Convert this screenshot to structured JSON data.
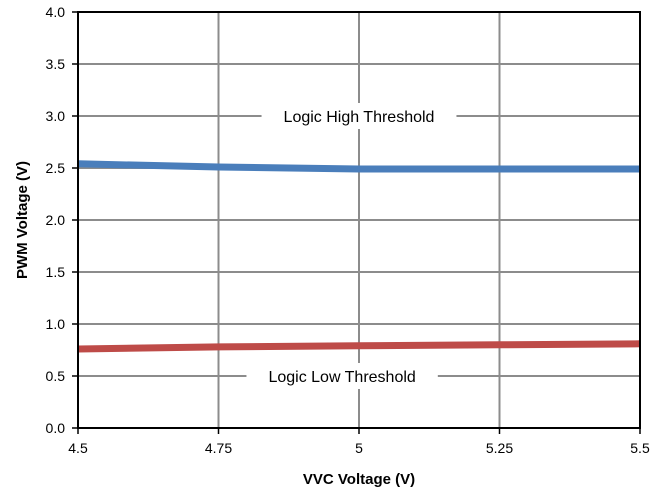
{
  "chart_data": {
    "type": "line",
    "title": "",
    "xlabel": "VVC Voltage (V)",
    "ylabel": "PWM Voltage (V)",
    "xlim": [
      4.5,
      5.5
    ],
    "ylim": [
      0,
      4
    ],
    "x_ticks": [
      "4.5",
      "4.75",
      "5",
      "5.25",
      "5.5"
    ],
    "y_ticks": [
      "0.0",
      "0.5",
      "1.0",
      "1.5",
      "2.0",
      "2.5",
      "3.0",
      "3.5",
      "4.0"
    ],
    "grid": true,
    "legend": "none",
    "series": [
      {
        "color": "#4a7ebb",
        "x": [
          4.5,
          4.75,
          5.0,
          5.25,
          5.5
        ],
        "y": [
          2.54,
          2.51,
          2.49,
          2.49,
          2.49
        ]
      },
      {
        "color": "#be4b48",
        "x": [
          4.5,
          4.75,
          5.0,
          5.25,
          5.5
        ],
        "y": [
          0.76,
          0.78,
          0.79,
          0.8,
          0.81
        ]
      }
    ],
    "annotations": [
      {
        "text": "Logic High Threshold",
        "x": 5.0,
        "y": 3.0
      },
      {
        "text": "Logic Low Threshold",
        "x": 4.97,
        "y": 0.5
      }
    ]
  }
}
